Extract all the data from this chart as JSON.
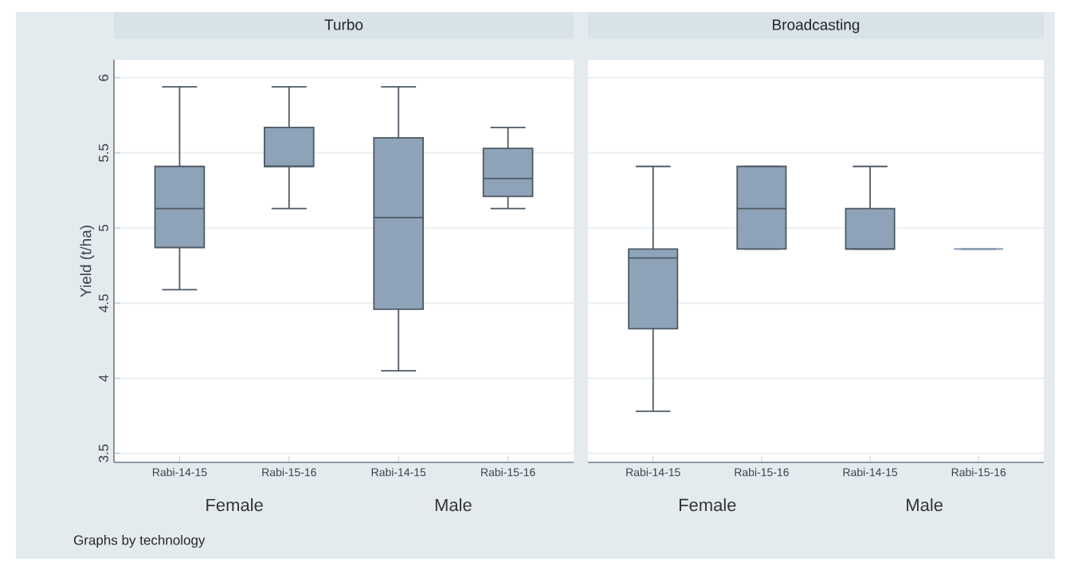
{
  "chart_data": [
    {
      "type": "box",
      "title": "Turbo",
      "ylabel": "Yield (t/ha)",
      "categories": [
        "Rabi-14-15",
        "Rabi-15-16",
        "Rabi-14-15",
        "Rabi-15-16"
      ],
      "ylim": [
        3.44,
        6.12
      ],
      "yticks": [
        3.5,
        4,
        4.5,
        5,
        5.5,
        6
      ],
      "grid": "y",
      "series": [
        {
          "color": "#8ea3b8",
          "boxes": [
            {
              "low": 4.59,
              "q1": 4.87,
              "median": 5.13,
              "q3": 5.41,
              "high": 5.94
            },
            {
              "low": 5.13,
              "q1": 5.41,
              "median": 5.41,
              "q3": 5.67,
              "high": 5.94
            },
            {
              "low": 4.05,
              "q1": 4.46,
              "median": 5.07,
              "q3": 5.6,
              "high": 5.94
            },
            {
              "low": 5.13,
              "q1": 5.21,
              "median": 5.33,
              "q3": 5.53,
              "high": 5.67
            }
          ]
        }
      ],
      "annotations": [
        "Female",
        "Male",
        "Graphs by technology"
      ]
    },
    {
      "type": "box",
      "title": "Broadcasting",
      "categories": [
        "Rabi-14-15",
        "Rabi-15-16",
        "Rabi-14-15",
        "Rabi-15-16"
      ],
      "ylim": [
        3.44,
        6.12
      ],
      "yticks": [
        3.5,
        4,
        4.5,
        5,
        5.5,
        6
      ],
      "grid": "y",
      "tick_labels": "x",
      "series": [
        {
          "color": "#8ea3b8",
          "boxes": [
            {
              "low": 3.78,
              "q1": 4.33,
              "median": 4.8,
              "q3": 4.86,
              "high": 5.41
            },
            {
              "low": 4.86,
              "q1": 4.86,
              "median": 5.13,
              "q3": 5.41,
              "high": 5.41
            },
            {
              "low": 4.86,
              "q1": 4.86,
              "median": 4.86,
              "q3": 5.13,
              "high": 5.41
            },
            {
              "low": 4.86,
              "q1": 4.86,
              "median": 4.86,
              "q3": 4.86,
              "high": 4.86
            }
          ]
        }
      ],
      "annotations": [
        "Female",
        "Male"
      ]
    }
  ]
}
